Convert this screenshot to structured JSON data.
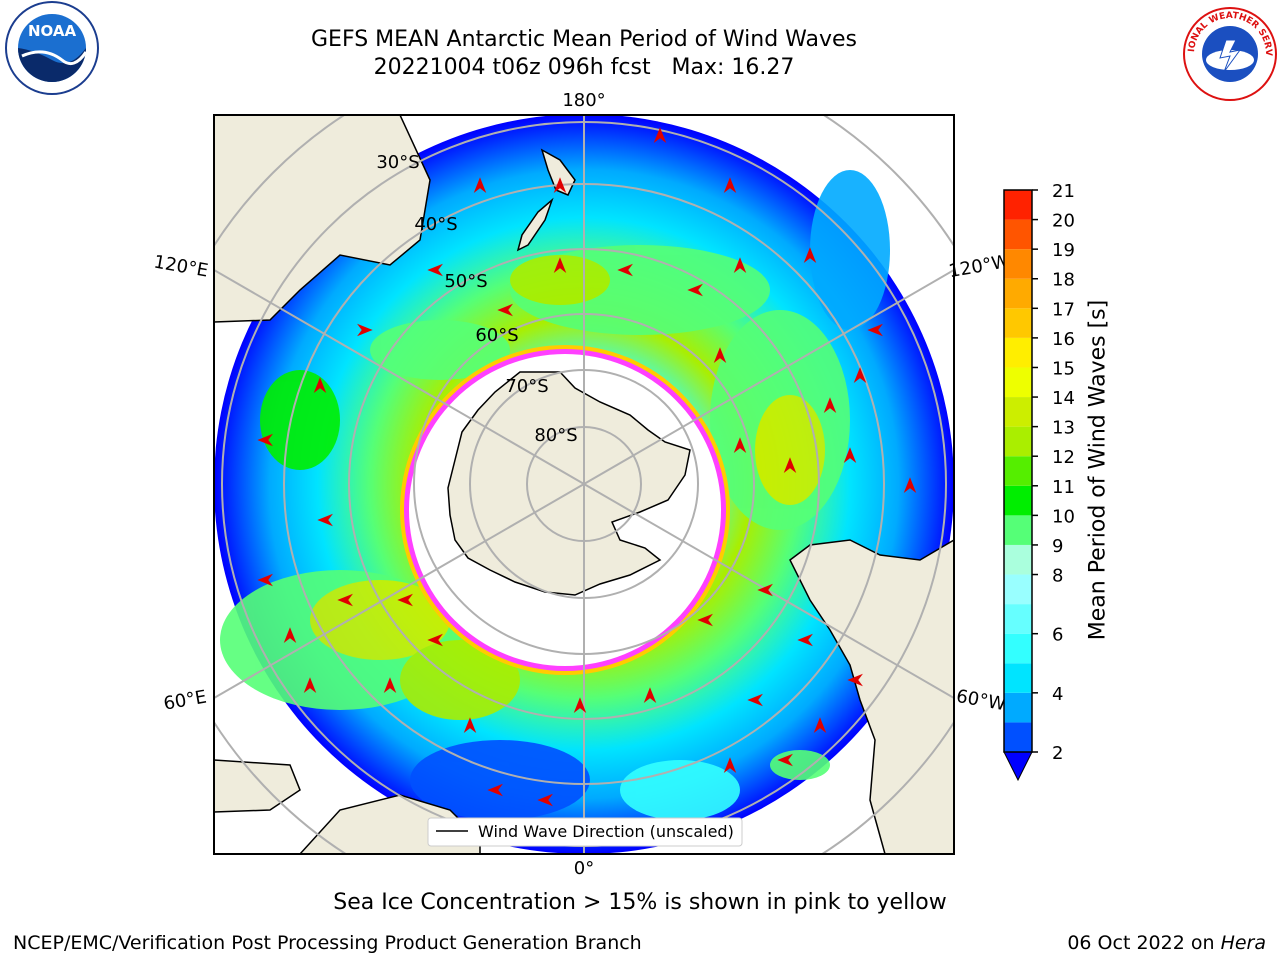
{
  "title": {
    "line1": "GEFS MEAN Antarctic Mean Period of Wind Waves",
    "line2": "20221004 t06z 096h fcst   Max: 16.27"
  },
  "logos": {
    "left": "NOAA",
    "right": "NATIONAL WEATHER SERVICE"
  },
  "map": {
    "projection": "south-polar-stereographic",
    "longitude_labels": [
      "180°",
      "120°E",
      "120°W",
      "60°E",
      "60°W",
      "0°"
    ],
    "latitude_labels": [
      "30°S",
      "40°S",
      "50°S",
      "60°S",
      "70°S",
      "80°S"
    ],
    "legend_label": "Wind Wave Direction (unscaled)",
    "colors": {
      "land": "#efecdc",
      "ice_edge": "#ff40ff",
      "ice_edge_outer": "#ffcc00",
      "grid": "#b0b0b0",
      "arrow": "#e00000"
    }
  },
  "colorbar": {
    "label": "Mean Period of Wind Waves [s]",
    "ticks": [
      "2",
      "4",
      "6",
      "8",
      "9",
      "10",
      "11",
      "12",
      "13",
      "14",
      "15",
      "16",
      "17",
      "18",
      "19",
      "20",
      "21"
    ],
    "levels": [
      2,
      3,
      4,
      5,
      6,
      7,
      8,
      9,
      10,
      11,
      12,
      13,
      14,
      15,
      16,
      17,
      18,
      19,
      20,
      21
    ],
    "colors": [
      "#0050ff",
      "#00aaff",
      "#00e4ff",
      "#33ffff",
      "#66ffff",
      "#99ffff",
      "#aaffdd",
      "#55ff77",
      "#00ee00",
      "#55ee00",
      "#aaee00",
      "#ccee00",
      "#eeff00",
      "#ffee00",
      "#ffc800",
      "#ffaa00",
      "#ff8800",
      "#ff5500",
      "#ff2200",
      "#ff0000"
    ],
    "extend_color": "#0000ff"
  },
  "sea_ice_note": "Sea Ice Concentration > 15% is shown in pink to yellow",
  "footer": {
    "left": "NCEP/EMC/Verification Post Processing Product Generation Branch",
    "right_prefix": "06 Oct 2022 on ",
    "right_machine": "Hera"
  }
}
